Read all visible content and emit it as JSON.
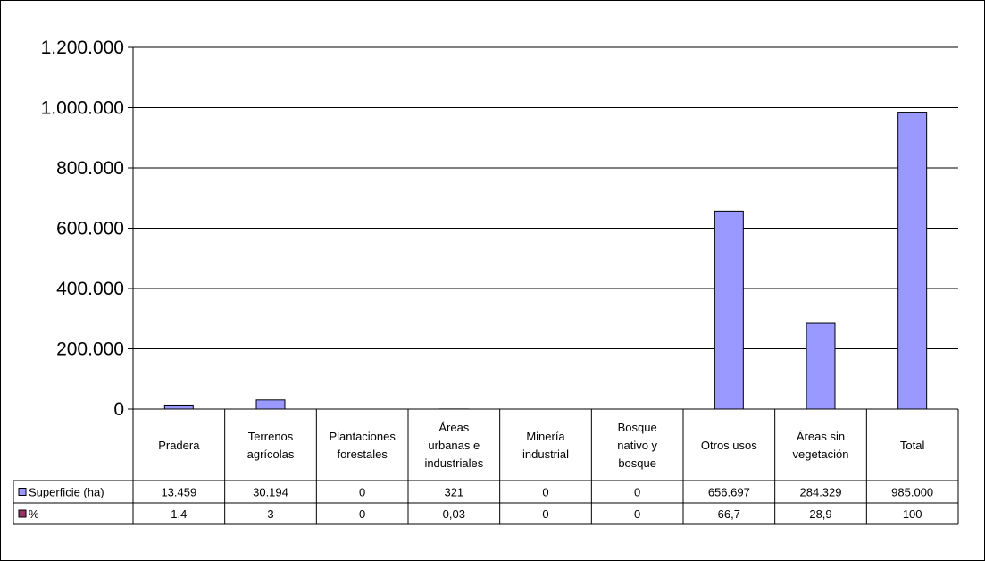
{
  "chart_data": {
    "type": "bar",
    "categories": [
      "Pradera",
      "Terrenos\nagrícolas",
      "Plantaciones\nforestales",
      "Áreas\nurbanas e\nindustriales",
      "Minería\nindustrial",
      "Bosque\nnativo y\nbosque",
      "Otros usos",
      "Áreas sin\nvegetación",
      "Total"
    ],
    "series": [
      {
        "name": "Superficie (ha)",
        "color": "#9999FF",
        "values": [
          13459,
          30194,
          0,
          321,
          0,
          0,
          656697,
          284329,
          985000
        ],
        "labels": [
          "13.459",
          "30.194",
          "0",
          "321",
          "0",
          "0",
          "656.697",
          "284.329",
          "985.000"
        ]
      },
      {
        "name": "%",
        "color": "#993366",
        "values": [
          1.4,
          3,
          0,
          0.03,
          0,
          0,
          66.7,
          28.9,
          100
        ],
        "labels": [
          "1,4",
          "3",
          "0",
          "0,03",
          "0",
          "0",
          "66,7",
          "28,9",
          "100"
        ]
      }
    ],
    "yticks": [
      "0",
      "200.000",
      "400.000",
      "600.000",
      "800.000",
      "1.000.000",
      "1.200.000"
    ],
    "ylim": [
      0,
      1200000
    ],
    "grid": true,
    "legend": "data-table"
  }
}
